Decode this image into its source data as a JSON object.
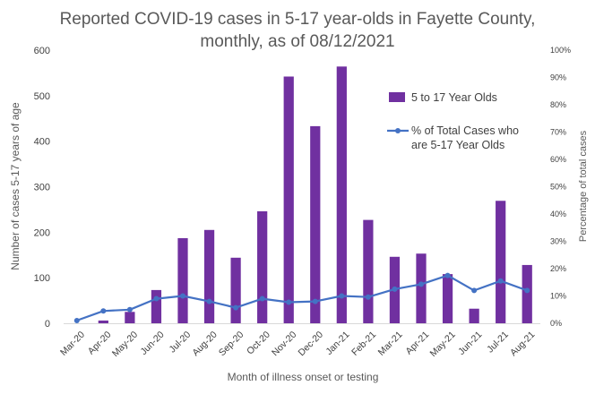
{
  "chart_data": {
    "type": "bar",
    "title_lines": [
      "Reported COVID-19 cases in 5-17 year-olds in Fayette County,",
      "monthly, as of 08/12/2021"
    ],
    "xlabel": "Month of illness onset or testing",
    "ylabel": "Number of cases 5-17 years of age",
    "y2label": "Percentage of total cases",
    "ylim": [
      0,
      600
    ],
    "y2lim": [
      0,
      100
    ],
    "yticks": [
      "0",
      "100",
      "200",
      "300",
      "400",
      "500",
      "600"
    ],
    "y2ticks": [
      "0%",
      "10%",
      "20%",
      "30%",
      "40%",
      "50%",
      "60%",
      "70%",
      "80%",
      "90%",
      "100%"
    ],
    "categories": [
      "Mar-20",
      "Apr-20",
      "May-20",
      "Jun-20",
      "Jul-20",
      "Aug-20",
      "Sep-20",
      "Oct-20",
      "Nov-20",
      "Dec-20",
      "Jan-21",
      "Feb-21",
      "Mar-21",
      "Apr-21",
      "May-21",
      "Jun-21",
      "Jul-21",
      "Aug-21"
    ],
    "series": [
      {
        "name": "5 to 17 Year Olds",
        "type": "bar",
        "axis": "left",
        "color": "#7030A0",
        "values": [
          0,
          6,
          25,
          73,
          187,
          205,
          144,
          246,
          542,
          433,
          564,
          227,
          146,
          153,
          108,
          32,
          269,
          128
        ]
      },
      {
        "name_lines": [
          "% of Total Cases who",
          "are 5-17 Year Olds"
        ],
        "type": "line",
        "axis": "right",
        "color": "#4472C4",
        "values": [
          1,
          4.5,
          5,
          9,
          10,
          8,
          5.7,
          9,
          7.7,
          8,
          10,
          9.6,
          12.5,
          14.3,
          17.5,
          12,
          15.5,
          12
        ]
      }
    ],
    "gridlines": false,
    "legend_position": "right"
  }
}
